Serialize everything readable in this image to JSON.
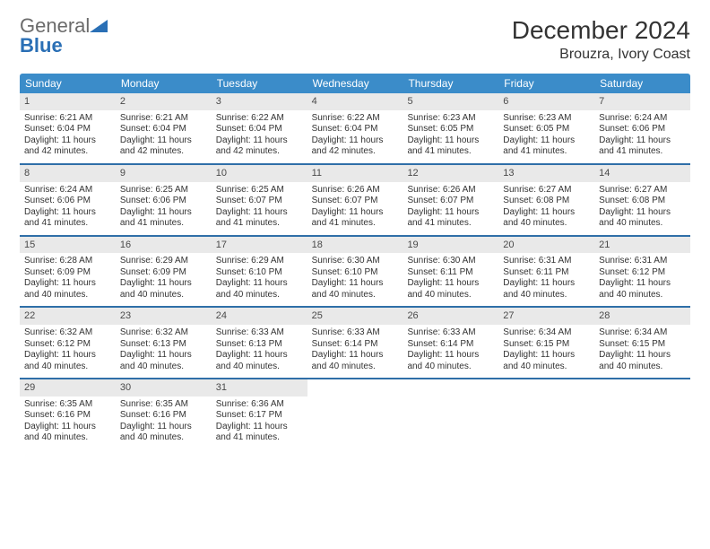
{
  "logo": {
    "word1": "General",
    "word2": "Blue"
  },
  "title": "December 2024",
  "location": "Brouzra, Ivory Coast",
  "colors": {
    "header_bg": "#3b8cc9",
    "header_text": "#ffffff",
    "daynum_bg": "#e9e9e9",
    "week_border": "#2f6fa8",
    "logo_gray": "#6b6b6b",
    "logo_blue": "#2a6fb5",
    "text": "#333333",
    "background": "#ffffff"
  },
  "typography": {
    "title_fontsize": 28,
    "location_fontsize": 16,
    "dayname_fontsize": 12,
    "cell_fontsize": 10,
    "daynum_fontsize": 11,
    "logo_fontsize": 22
  },
  "daynames": [
    "Sunday",
    "Monday",
    "Tuesday",
    "Wednesday",
    "Thursday",
    "Friday",
    "Saturday"
  ],
  "weeks": [
    [
      {
        "num": "1",
        "sunrise": "Sunrise: 6:21 AM",
        "sunset": "Sunset: 6:04 PM",
        "daylight": "Daylight: 11 hours and 42 minutes."
      },
      {
        "num": "2",
        "sunrise": "Sunrise: 6:21 AM",
        "sunset": "Sunset: 6:04 PM",
        "daylight": "Daylight: 11 hours and 42 minutes."
      },
      {
        "num": "3",
        "sunrise": "Sunrise: 6:22 AM",
        "sunset": "Sunset: 6:04 PM",
        "daylight": "Daylight: 11 hours and 42 minutes."
      },
      {
        "num": "4",
        "sunrise": "Sunrise: 6:22 AM",
        "sunset": "Sunset: 6:04 PM",
        "daylight": "Daylight: 11 hours and 42 minutes."
      },
      {
        "num": "5",
        "sunrise": "Sunrise: 6:23 AM",
        "sunset": "Sunset: 6:05 PM",
        "daylight": "Daylight: 11 hours and 41 minutes."
      },
      {
        "num": "6",
        "sunrise": "Sunrise: 6:23 AM",
        "sunset": "Sunset: 6:05 PM",
        "daylight": "Daylight: 11 hours and 41 minutes."
      },
      {
        "num": "7",
        "sunrise": "Sunrise: 6:24 AM",
        "sunset": "Sunset: 6:06 PM",
        "daylight": "Daylight: 11 hours and 41 minutes."
      }
    ],
    [
      {
        "num": "8",
        "sunrise": "Sunrise: 6:24 AM",
        "sunset": "Sunset: 6:06 PM",
        "daylight": "Daylight: 11 hours and 41 minutes."
      },
      {
        "num": "9",
        "sunrise": "Sunrise: 6:25 AM",
        "sunset": "Sunset: 6:06 PM",
        "daylight": "Daylight: 11 hours and 41 minutes."
      },
      {
        "num": "10",
        "sunrise": "Sunrise: 6:25 AM",
        "sunset": "Sunset: 6:07 PM",
        "daylight": "Daylight: 11 hours and 41 minutes."
      },
      {
        "num": "11",
        "sunrise": "Sunrise: 6:26 AM",
        "sunset": "Sunset: 6:07 PM",
        "daylight": "Daylight: 11 hours and 41 minutes."
      },
      {
        "num": "12",
        "sunrise": "Sunrise: 6:26 AM",
        "sunset": "Sunset: 6:07 PM",
        "daylight": "Daylight: 11 hours and 41 minutes."
      },
      {
        "num": "13",
        "sunrise": "Sunrise: 6:27 AM",
        "sunset": "Sunset: 6:08 PM",
        "daylight": "Daylight: 11 hours and 40 minutes."
      },
      {
        "num": "14",
        "sunrise": "Sunrise: 6:27 AM",
        "sunset": "Sunset: 6:08 PM",
        "daylight": "Daylight: 11 hours and 40 minutes."
      }
    ],
    [
      {
        "num": "15",
        "sunrise": "Sunrise: 6:28 AM",
        "sunset": "Sunset: 6:09 PM",
        "daylight": "Daylight: 11 hours and 40 minutes."
      },
      {
        "num": "16",
        "sunrise": "Sunrise: 6:29 AM",
        "sunset": "Sunset: 6:09 PM",
        "daylight": "Daylight: 11 hours and 40 minutes."
      },
      {
        "num": "17",
        "sunrise": "Sunrise: 6:29 AM",
        "sunset": "Sunset: 6:10 PM",
        "daylight": "Daylight: 11 hours and 40 minutes."
      },
      {
        "num": "18",
        "sunrise": "Sunrise: 6:30 AM",
        "sunset": "Sunset: 6:10 PM",
        "daylight": "Daylight: 11 hours and 40 minutes."
      },
      {
        "num": "19",
        "sunrise": "Sunrise: 6:30 AM",
        "sunset": "Sunset: 6:11 PM",
        "daylight": "Daylight: 11 hours and 40 minutes."
      },
      {
        "num": "20",
        "sunrise": "Sunrise: 6:31 AM",
        "sunset": "Sunset: 6:11 PM",
        "daylight": "Daylight: 11 hours and 40 minutes."
      },
      {
        "num": "21",
        "sunrise": "Sunrise: 6:31 AM",
        "sunset": "Sunset: 6:12 PM",
        "daylight": "Daylight: 11 hours and 40 minutes."
      }
    ],
    [
      {
        "num": "22",
        "sunrise": "Sunrise: 6:32 AM",
        "sunset": "Sunset: 6:12 PM",
        "daylight": "Daylight: 11 hours and 40 minutes."
      },
      {
        "num": "23",
        "sunrise": "Sunrise: 6:32 AM",
        "sunset": "Sunset: 6:13 PM",
        "daylight": "Daylight: 11 hours and 40 minutes."
      },
      {
        "num": "24",
        "sunrise": "Sunrise: 6:33 AM",
        "sunset": "Sunset: 6:13 PM",
        "daylight": "Daylight: 11 hours and 40 minutes."
      },
      {
        "num": "25",
        "sunrise": "Sunrise: 6:33 AM",
        "sunset": "Sunset: 6:14 PM",
        "daylight": "Daylight: 11 hours and 40 minutes."
      },
      {
        "num": "26",
        "sunrise": "Sunrise: 6:33 AM",
        "sunset": "Sunset: 6:14 PM",
        "daylight": "Daylight: 11 hours and 40 minutes."
      },
      {
        "num": "27",
        "sunrise": "Sunrise: 6:34 AM",
        "sunset": "Sunset: 6:15 PM",
        "daylight": "Daylight: 11 hours and 40 minutes."
      },
      {
        "num": "28",
        "sunrise": "Sunrise: 6:34 AM",
        "sunset": "Sunset: 6:15 PM",
        "daylight": "Daylight: 11 hours and 40 minutes."
      }
    ],
    [
      {
        "num": "29",
        "sunrise": "Sunrise: 6:35 AM",
        "sunset": "Sunset: 6:16 PM",
        "daylight": "Daylight: 11 hours and 40 minutes."
      },
      {
        "num": "30",
        "sunrise": "Sunrise: 6:35 AM",
        "sunset": "Sunset: 6:16 PM",
        "daylight": "Daylight: 11 hours and 40 minutes."
      },
      {
        "num": "31",
        "sunrise": "Sunrise: 6:36 AM",
        "sunset": "Sunset: 6:17 PM",
        "daylight": "Daylight: 11 hours and 41 minutes."
      },
      null,
      null,
      null,
      null
    ]
  ]
}
